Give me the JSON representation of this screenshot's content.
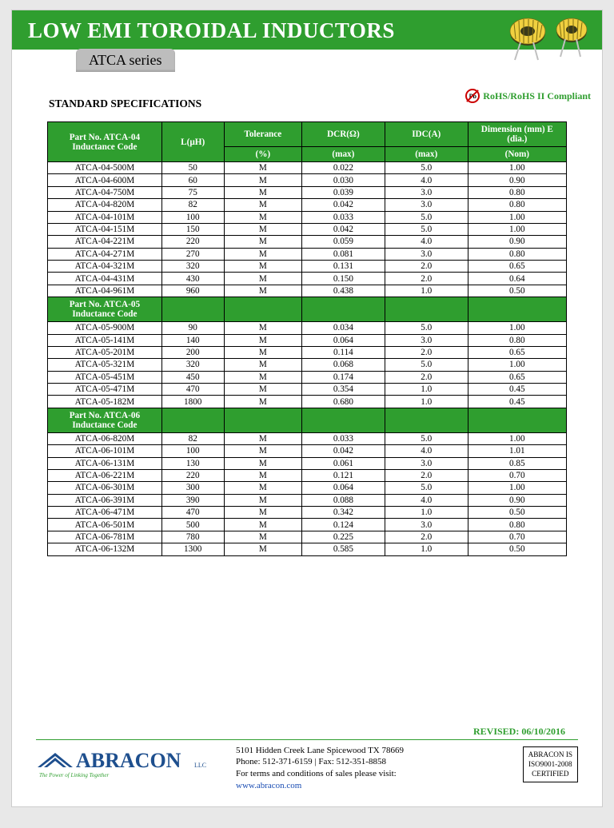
{
  "header": {
    "title": "LOW EMI TOROIDAL INDUCTORS",
    "series": "ATCA series",
    "rohs": "RoHS/RoHS II Compliant",
    "pb_label": "Pb"
  },
  "section_title": "STANDARD SPECIFICATIONS",
  "table": {
    "header_row1": {
      "c0": "Part No. ATCA-04 Inductance Code",
      "c1": "L(µH)",
      "c2": "Tolerance",
      "c3": "DCR(Ω)",
      "c4": "IDC(A)",
      "c5": "Dimension (mm) E (dia.)"
    },
    "header_row2": {
      "c2": "(%)",
      "c3": "(max)",
      "c4": "(max)",
      "c5": "(Nom)"
    },
    "rows04": [
      [
        "ATCA-04-500M",
        "50",
        "M",
        "0.022",
        "5.0",
        "1.00"
      ],
      [
        "ATCA-04-600M",
        "60",
        "M",
        "0.030",
        "4.0",
        "0.90"
      ],
      [
        "ATCA-04-750M",
        "75",
        "M",
        "0.039",
        "3.0",
        "0.80"
      ],
      [
        "ATCA-04-820M",
        "82",
        "M",
        "0.042",
        "3.0",
        "0.80"
      ],
      [
        "ATCA-04-101M",
        "100",
        "M",
        "0.033",
        "5.0",
        "1.00"
      ],
      [
        "ATCA-04-151M",
        "150",
        "M",
        "0.042",
        "5.0",
        "1.00"
      ],
      [
        "ATCA-04-221M",
        "220",
        "M",
        "0.059",
        "4.0",
        "0.90"
      ],
      [
        "ATCA-04-271M",
        "270",
        "M",
        "0.081",
        "3.0",
        "0.80"
      ],
      [
        "ATCA-04-321M",
        "320",
        "M",
        "0.131",
        "2.0",
        "0.65"
      ],
      [
        "ATCA-04-431M",
        "430",
        "M",
        "0.150",
        "2.0",
        "0.64"
      ],
      [
        "ATCA-04-961M",
        "960",
        "M",
        "0.438",
        "1.0",
        "0.50"
      ]
    ],
    "sub05": "Part No. ATCA-05 Inductance Code",
    "rows05": [
      [
        "ATCA-05-900M",
        "90",
        "M",
        "0.034",
        "5.0",
        "1.00"
      ],
      [
        "ATCA-05-141M",
        "140",
        "M",
        "0.064",
        "3.0",
        "0.80"
      ],
      [
        "ATCA-05-201M",
        "200",
        "M",
        "0.114",
        "2.0",
        "0.65"
      ],
      [
        "ATCA-05-321M",
        "320",
        "M",
        "0.068",
        "5.0",
        "1.00"
      ],
      [
        "ATCA-05-451M",
        "450",
        "M",
        "0.174",
        "2.0",
        "0.65"
      ],
      [
        "ATCA-05-471M",
        "470",
        "M",
        "0.354",
        "1.0",
        "0.45"
      ],
      [
        "ATCA-05-182M",
        "1800",
        "M",
        "0.680",
        "1.0",
        "0.45"
      ]
    ],
    "sub06": "Part No. ATCA-06 Inductance Code",
    "rows06": [
      [
        "ATCA-06-820M",
        "82",
        "M",
        "0.033",
        "5.0",
        "1.00"
      ],
      [
        "ATCA-06-101M",
        "100",
        "M",
        "0.042",
        "4.0",
        "1.01"
      ],
      [
        "ATCA-06-131M",
        "130",
        "M",
        "0.061",
        "3.0",
        "0.85"
      ],
      [
        "ATCA-06-221M",
        "220",
        "M",
        "0.121",
        "2.0",
        "0.70"
      ],
      [
        "ATCA-06-301M",
        "300",
        "M",
        "0.064",
        "5.0",
        "1.00"
      ],
      [
        "ATCA-06-391M",
        "390",
        "M",
        "0.088",
        "4.0",
        "0.90"
      ],
      [
        "ATCA-06-471M",
        "470",
        "M",
        "0.342",
        "1.0",
        "0.50"
      ],
      [
        "ATCA-06-501M",
        "500",
        "M",
        "0.124",
        "3.0",
        "0.80"
      ],
      [
        "ATCA-06-781M",
        "780",
        "M",
        "0.225",
        "2.0",
        "0.70"
      ],
      [
        "ATCA-06-132M",
        "1300",
        "M",
        "0.585",
        "1.0",
        "0.50"
      ]
    ]
  },
  "footer": {
    "revised": "REVISED:  06/10/2016",
    "address1": "5101 Hidden Creek Lane Spicewood TX 78669",
    "address2": "Phone: 512-371-6159 | Fax: 512-351-8858",
    "address3": "For terms and conditions of sales please visit:",
    "url": "www.abracon.com",
    "cert1": "ABRACON IS",
    "cert2": "ISO9001-2008",
    "cert3": "CERTIFIED",
    "logo_name": "ABRACON",
    "logo_suffix": "LLC",
    "tagline": "The Power of Linking Together"
  },
  "colors": {
    "green": "#2f9e2f",
    "gray": "#bdbdbd"
  }
}
